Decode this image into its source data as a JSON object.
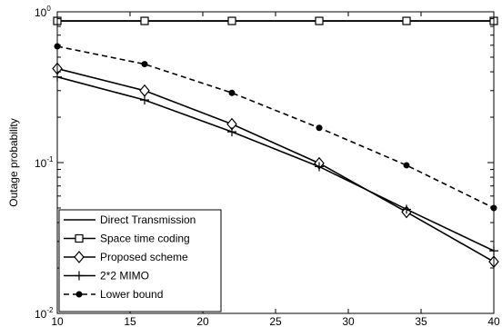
{
  "chart_data": {
    "type": "line",
    "title": "",
    "xlabel": "",
    "ylabel": "Outage probability",
    "xlim": [
      10,
      40
    ],
    "ylim": [
      0.01,
      1
    ],
    "yscale": "log",
    "grid": false,
    "legend_position": "bottom-left",
    "x_ticks": [
      10,
      15,
      20,
      25,
      30,
      35,
      40
    ],
    "y_ticks": [
      {
        "value": 1,
        "base": "10",
        "exp": "0"
      },
      {
        "value": 0.1,
        "base": "10",
        "exp": "-1"
      },
      {
        "value": 0.01,
        "base": "10",
        "exp": "-2"
      }
    ],
    "series": [
      {
        "name": "Direct Transmission",
        "marker": "none",
        "dash": "solid",
        "x": [
          10,
          16,
          22,
          28,
          34,
          40
        ],
        "y": [
          0.87,
          0.87,
          0.87,
          0.87,
          0.87,
          0.87
        ]
      },
      {
        "name": "Space time coding",
        "marker": "square",
        "dash": "solid",
        "x": [
          10,
          16,
          22,
          28,
          34,
          40
        ],
        "y": [
          0.87,
          0.87,
          0.87,
          0.87,
          0.87,
          0.87
        ]
      },
      {
        "name": "Proposed scheme",
        "marker": "diamond",
        "dash": "solid",
        "x": [
          10,
          16,
          22,
          28,
          34,
          40
        ],
        "y": [
          0.42,
          0.3,
          0.18,
          0.099,
          0.047,
          0.022
        ]
      },
      {
        "name": "2*2 MIMO",
        "marker": "plus",
        "dash": "solid",
        "x": [
          10,
          16,
          22,
          28,
          34,
          40
        ],
        "y": [
          0.37,
          0.26,
          0.16,
          0.094,
          0.049,
          0.026
        ]
      },
      {
        "name": "Lower bound",
        "marker": "dot",
        "dash": "dashed",
        "x": [
          10,
          16,
          22,
          28,
          34,
          40
        ],
        "y": [
          0.59,
          0.45,
          0.29,
          0.17,
          0.096,
          0.05
        ]
      }
    ]
  }
}
